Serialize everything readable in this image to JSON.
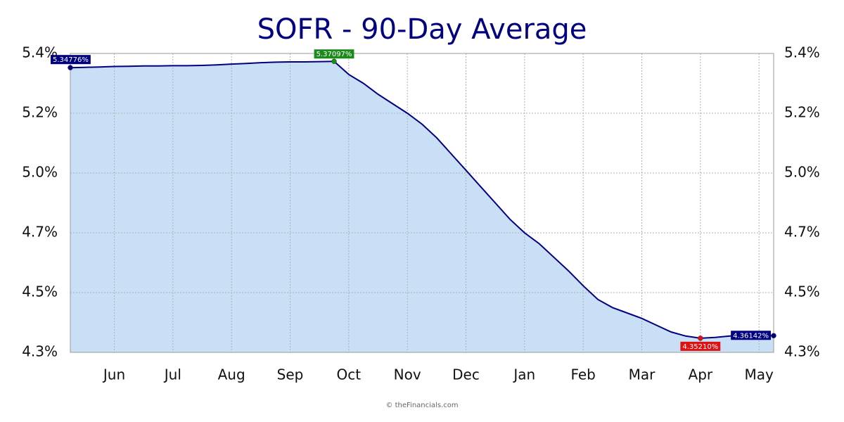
{
  "chart_data": {
    "type": "area",
    "title": "SOFR - 90-Day Average",
    "source": "© theFinancials.com",
    "categories": [
      null,
      null,
      null,
      "Jun",
      null,
      null,
      null,
      "Jul",
      null,
      null,
      null,
      "Aug",
      null,
      null,
      null,
      "Sep",
      null,
      null,
      null,
      "Oct",
      null,
      null,
      null,
      "Nov",
      null,
      null,
      null,
      "Dec",
      null,
      null,
      null,
      "Jan",
      null,
      null,
      null,
      "Feb",
      null,
      null,
      null,
      "Mar",
      null,
      null,
      null,
      "Apr",
      null,
      null,
      null,
      "May",
      null
    ],
    "values": [
      5.34776,
      5.349,
      5.35,
      5.352,
      5.353,
      5.354,
      5.354,
      5.355,
      5.355,
      5.356,
      5.358,
      5.361,
      5.363,
      5.366,
      5.368,
      5.369,
      5.369,
      5.37,
      5.37097,
      5.323,
      5.29,
      5.25,
      5.215,
      5.18,
      5.14,
      5.09,
      5.03,
      4.97,
      4.91,
      4.85,
      4.79,
      4.74,
      4.7,
      4.65,
      4.6,
      4.545,
      4.495,
      4.465,
      4.445,
      4.425,
      4.4,
      4.375,
      4.36,
      4.3521,
      4.355,
      4.36,
      4.362,
      4.362,
      4.36142
    ],
    "value_labels": [
      "5.34776%",
      null,
      null,
      null,
      null,
      null,
      null,
      null,
      null,
      null,
      null,
      null,
      null,
      null,
      null,
      null,
      null,
      null,
      "5.37097%",
      null,
      null,
      null,
      null,
      null,
      null,
      null,
      null,
      null,
      null,
      null,
      null,
      null,
      null,
      null,
      null,
      null,
      null,
      null,
      null,
      null,
      null,
      null,
      null,
      "4.35210%",
      null,
      null,
      null,
      null,
      "4.36142%"
    ],
    "color": "#000080",
    "fill": "#c9dff5",
    "ylim": [
      4.3,
      5.4
    ],
    "yticks": [
      {
        "value": 4.3,
        "label": "4.3%"
      },
      {
        "value": 4.52,
        "label": "4.5%"
      },
      {
        "value": 4.74,
        "label": "4.7%"
      },
      {
        "value": 4.96,
        "label": "5.0%"
      },
      {
        "value": 5.18,
        "label": "5.2%"
      },
      {
        "value": 5.4,
        "label": "5.4%"
      }
    ],
    "grid": true
  }
}
